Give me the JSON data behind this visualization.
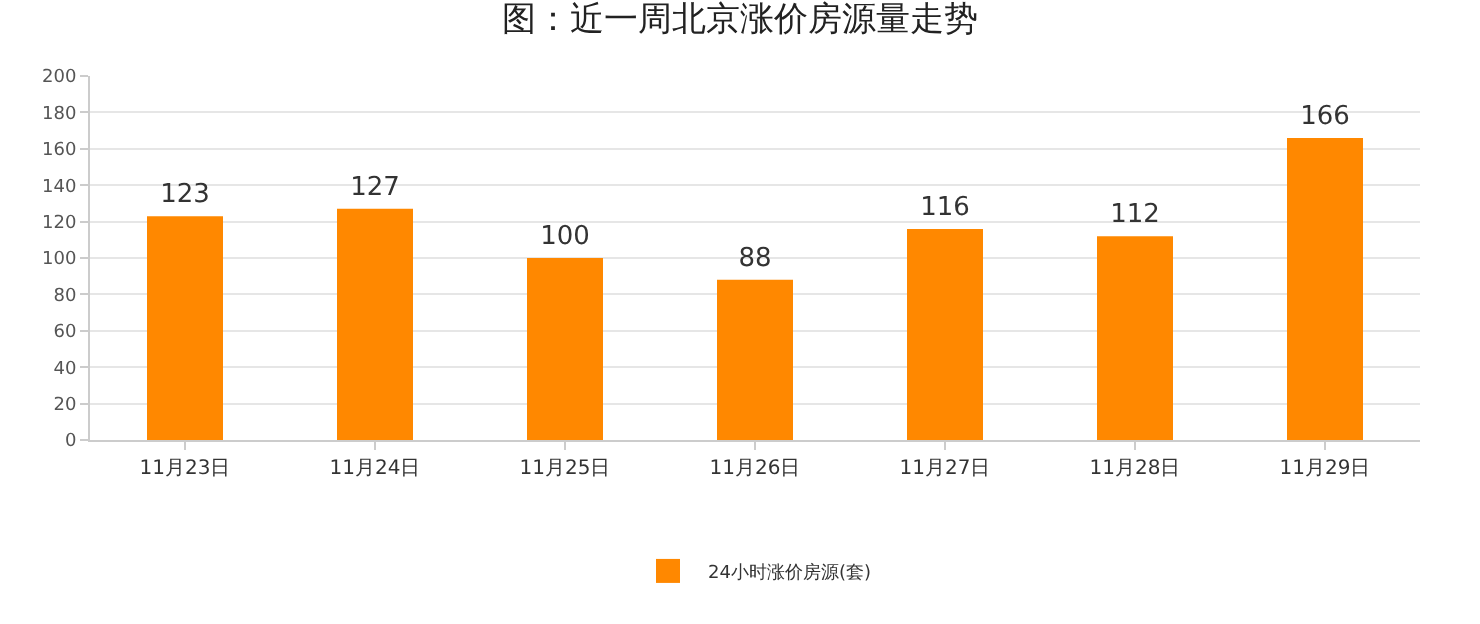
{
  "chart_data": {
    "type": "bar",
    "title": "图：近一周北京涨价房源量走势",
    "categories": [
      "11月23日",
      "11月24日",
      "11月25日",
      "11月26日",
      "11月27日",
      "11月28日",
      "11月29日"
    ],
    "series": [
      {
        "name": "24小时涨价房源(套)",
        "color": "#ff8800",
        "values": [
          123,
          127,
          100,
          88,
          116,
          112,
          166
        ]
      }
    ],
    "ylim": [
      0,
      200
    ],
    "yticks": [
      0,
      20,
      40,
      60,
      80,
      100,
      120,
      140,
      160,
      180,
      200
    ],
    "grid": "y",
    "legend": "bottom",
    "data_labels": true
  }
}
